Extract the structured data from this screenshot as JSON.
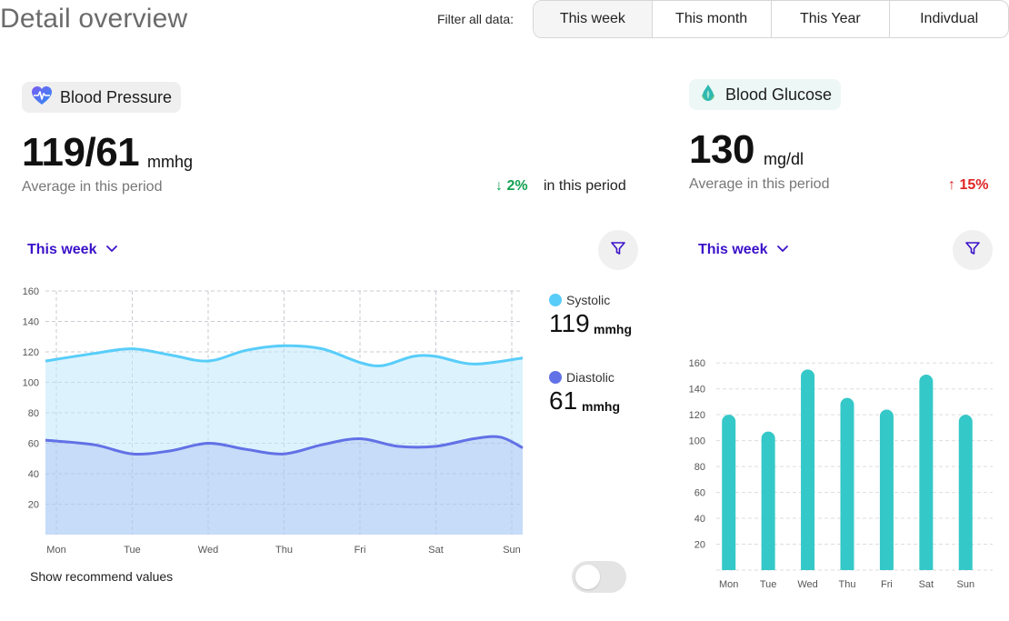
{
  "header": {
    "title": "Detail overview",
    "filter_label": "Filter all data:",
    "filters": [
      "This week",
      "This month",
      "This Year",
      "Indivdual"
    ],
    "active_filter": "This week"
  },
  "blood_pressure": {
    "label": "Blood Pressure",
    "value": "119/61",
    "unit": "mmhg",
    "subtitle": "Average in this period",
    "delta": "↓ 2%",
    "delta_suffix": "in this period",
    "range_select": "This week",
    "toggle_label": "Show recommend values",
    "toggle_on": false,
    "legend": {
      "systolic": {
        "name": "Systolic",
        "value": "119",
        "unit": "mmhg",
        "color": "#58cdfa"
      },
      "diastolic": {
        "name": "Diastolic",
        "value": "61",
        "unit": "mmhg",
        "color": "#6271e6"
      }
    }
  },
  "blood_glucose": {
    "label": "Blood Glucose",
    "value": "130",
    "unit": "mg/dl",
    "subtitle": "Average in this period",
    "delta": "↑ 15%",
    "range_select": "This week"
  },
  "chart_data": [
    {
      "type": "area",
      "categories": [
        "Mon",
        "Tue",
        "Wed",
        "Thu",
        "Fri",
        "Sat",
        "Sun"
      ],
      "yticks": [
        20,
        40,
        60,
        80,
        100,
        120,
        140,
        160
      ],
      "ylim": [
        0,
        160
      ],
      "grid": true,
      "series": [
        {
          "name": "Systolic",
          "color": "#58cdfa",
          "fill": "#dcf3fd",
          "x": [
            0,
            0.5,
            1,
            1.5,
            2,
            2.5,
            3,
            3.5,
            4,
            4.3,
            4.7,
            5,
            5.5,
            6
          ],
          "values": [
            114,
            119,
            122,
            118,
            114,
            121,
            124,
            122,
            113,
            111,
            117,
            117,
            112,
            116
          ]
        },
        {
          "name": "Diastolic",
          "color": "#6271e6",
          "fill": "#c6dcf8",
          "x": [
            0,
            0.5,
            1,
            1.5,
            2,
            2.5,
            3,
            3.5,
            4,
            4.5,
            5,
            5.5,
            5.85,
            6
          ],
          "values": [
            62,
            59,
            53,
            55,
            60,
            56,
            53,
            59,
            63,
            58,
            58,
            63,
            64,
            57
          ]
        }
      ]
    },
    {
      "type": "bar",
      "categories": [
        "Mon",
        "Tue",
        "Wed",
        "Thu",
        "Fri",
        "Sat",
        "Sun"
      ],
      "values": [
        120,
        107,
        155,
        133,
        124,
        151,
        120
      ],
      "yticks": [
        20,
        40,
        60,
        80,
        100,
        120,
        140,
        160
      ],
      "ylim": [
        0,
        160
      ],
      "grid": true,
      "color": "#35c8c8"
    }
  ]
}
